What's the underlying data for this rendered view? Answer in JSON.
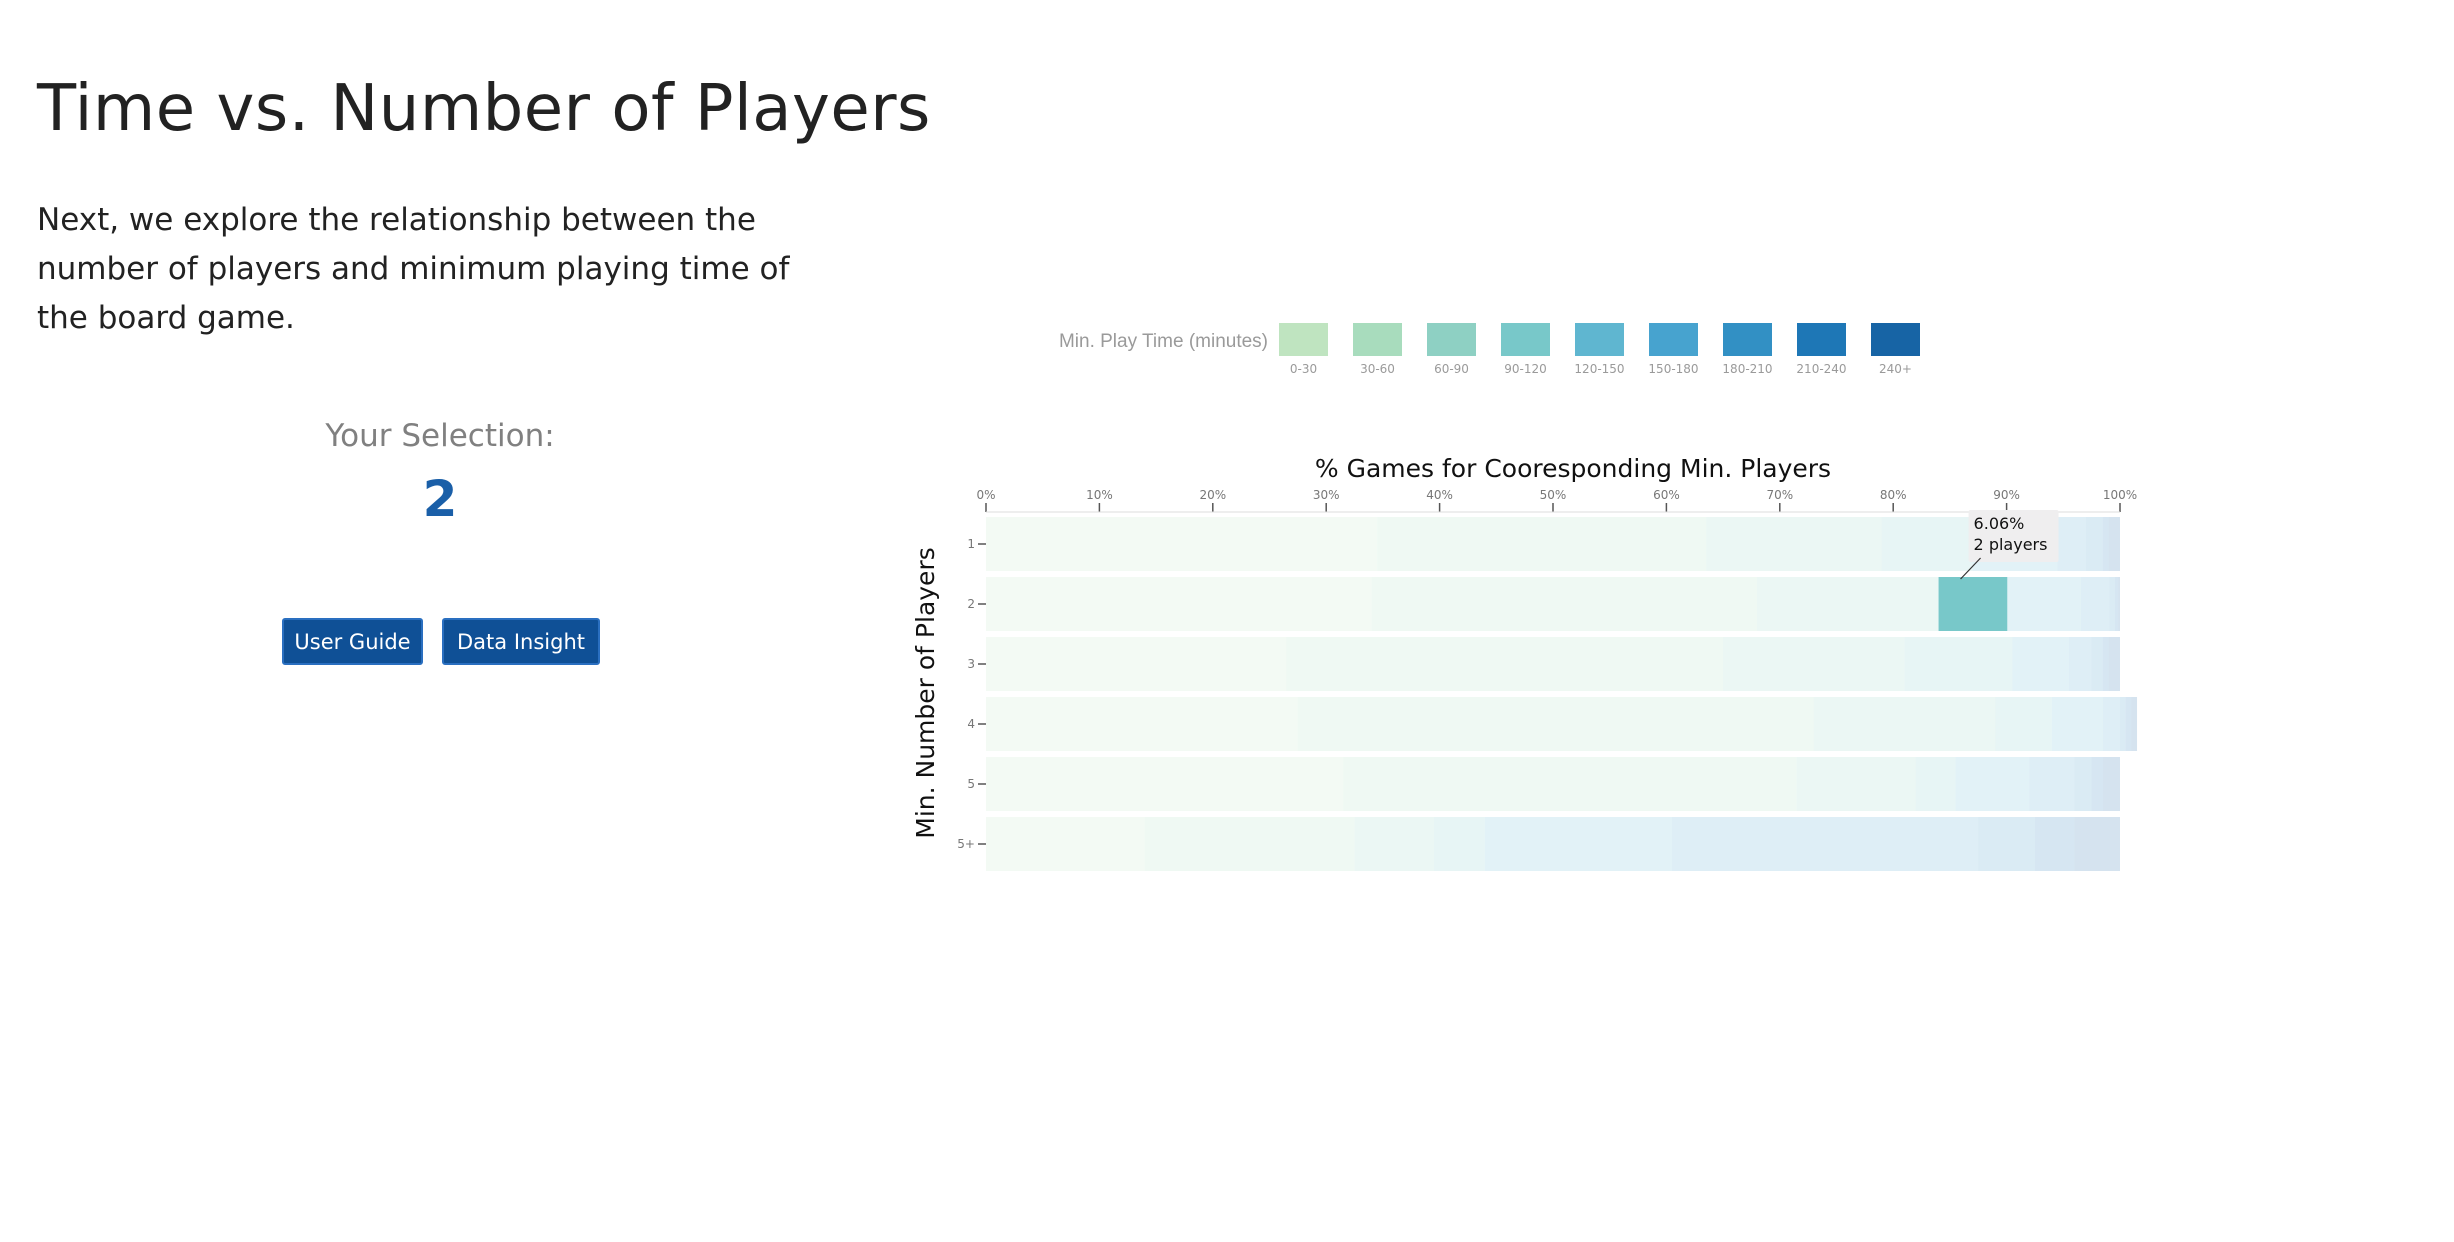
{
  "page": {
    "title": "Time vs. Number of Players",
    "intro": "Next, we explore the relationship between the number of players and minimum playing time of the board game.",
    "selection_label": "Your Selection:",
    "selection_value": "2",
    "buttons": {
      "user_guide": "User Guide",
      "data_insight": "Data Insight"
    }
  },
  "chart_data": {
    "type": "bar",
    "orientation": "horizontal-stacked-100",
    "title": "% Games for Cooresponding Min. Players",
    "xlabel": "",
    "ylabel": "Min. Number of Players",
    "xlim": [
      0,
      100
    ],
    "x_ticks": [
      "0%",
      "10%",
      "20%",
      "30%",
      "40%",
      "50%",
      "60%",
      "70%",
      "80%",
      "90%",
      "100%"
    ],
    "categories": [
      "1",
      "2",
      "3",
      "4",
      "5",
      "5+"
    ],
    "legend_title": "Min. Play Time (minutes)",
    "legend_position": "top",
    "series": [
      {
        "name": "0-30",
        "color": "#bfe4c0",
        "values": [
          34.5,
          34.0,
          26.5,
          27.5,
          31.5,
          14.0
        ]
      },
      {
        "name": "30-60",
        "color": "#a8dcbd",
        "values": [
          29.0,
          34.0,
          38.5,
          45.5,
          40.0,
          18.5
        ]
      },
      {
        "name": "60-90",
        "color": "#8ed0c3",
        "values": [
          15.5,
          16.0,
          16.0,
          16.0,
          10.5,
          7.0
        ]
      },
      {
        "name": "90-120",
        "color": "#78c8c9",
        "values": [
          8.0,
          6.06,
          9.5,
          5.0,
          3.5,
          4.5
        ]
      },
      {
        "name": "120-150",
        "color": "#5fb6d0",
        "values": [
          7.5,
          6.5,
          5.0,
          4.5,
          6.5,
          16.5
        ]
      },
      {
        "name": "150-180",
        "color": "#47a3cf",
        "values": [
          2.5,
          2.5,
          2.0,
          1.5,
          4.0,
          27.0
        ]
      },
      {
        "name": "180-210",
        "color": "#3290c4",
        "values": [
          1.5,
          0.5,
          1.0,
          0.5,
          1.5,
          5.0
        ]
      },
      {
        "name": "210-240",
        "color": "#1e77b6",
        "values": [
          0.5,
          0.3,
          0.5,
          0.5,
          1.0,
          3.5
        ]
      },
      {
        "name": "240+",
        "color": "#1764a5",
        "values": [
          1.0,
          0.14,
          1.0,
          0.5,
          1.5,
          4.0
        ]
      }
    ],
    "selected_category": "2",
    "highlight": {
      "category": "2",
      "series": "90-120",
      "value_label": "6.06%",
      "players_label": "2 players"
    },
    "dim_opacity": 0.18
  }
}
